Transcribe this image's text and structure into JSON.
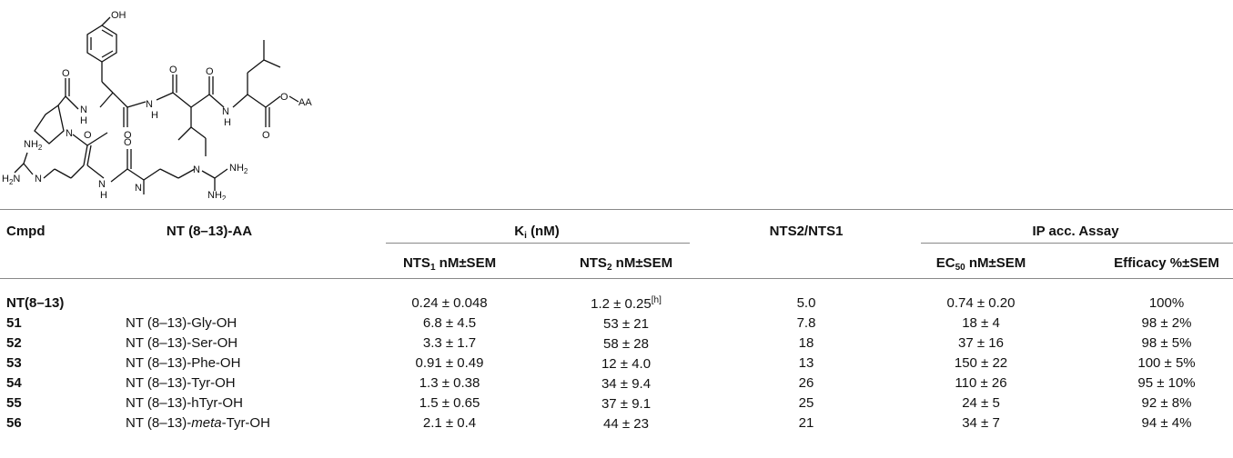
{
  "structure": {
    "labels": {
      "oh": "OH",
      "o": "O",
      "o_aa": "O",
      "aa": "AA",
      "n": "N",
      "nh": "N",
      "h": "H",
      "nh2": "NH",
      "two": "2",
      "h2n": "H",
      "h2n_tail": "N"
    }
  },
  "table": {
    "headers": {
      "cmpd": "Cmpd",
      "nt_aa": "NT (8–13)-AA",
      "ki": "K",
      "ki_sub": "i",
      "ki_unit": " (nM)",
      "ratio": "NTS2/NTS1",
      "ip": "IP acc. Assay",
      "nts1_pre": "NTS",
      "nts1_sub": "1",
      "nts1_post": " nM±SEM",
      "nts2_pre": "NTS",
      "nts2_sub": "2",
      "nts2_post": " nM±SEM",
      "ec50_pre": "EC",
      "ec50_sub": "50",
      "ec50_post": " nM±SEM",
      "efficacy": "Efficacy %±SEM"
    },
    "rows": [
      {
        "cmpd": "NT(8–13)",
        "name_pre": "",
        "name_it": "",
        "name_post": "",
        "nts1": "0.24 ± 0.048",
        "nts2": "1.2 ± 0.25",
        "nts2_note": "[h]",
        "ratio": "5.0",
        "ec50": "0.74 ± 0.20",
        "efficacy": "100%"
      },
      {
        "cmpd": "51",
        "name_pre": "NT (8–13)-Gly-OH",
        "name_it": "",
        "name_post": "",
        "nts1": "6.8 ± 4.5",
        "nts2": "53 ± 21",
        "nts2_note": "",
        "ratio": "7.8",
        "ec50": "18 ± 4",
        "efficacy": "98 ± 2%"
      },
      {
        "cmpd": "52",
        "name_pre": "NT (8–13)-Ser-OH",
        "name_it": "",
        "name_post": "",
        "nts1": "3.3 ± 1.7",
        "nts2": "58 ± 28",
        "nts2_note": "",
        "ratio": "18",
        "ec50": "37 ± 16",
        "efficacy": "98 ± 5%"
      },
      {
        "cmpd": "53",
        "name_pre": "NT (8–13)-Phe-OH",
        "name_it": "",
        "name_post": "",
        "nts1": "0.91 ± 0.49",
        "nts2": "12 ± 4.0",
        "nts2_note": "",
        "ratio": "13",
        "ec50": "150 ± 22",
        "efficacy": "100 ± 5%"
      },
      {
        "cmpd": "54",
        "name_pre": "NT (8–13)-Tyr-OH",
        "name_it": "",
        "name_post": "",
        "nts1": "1.3 ± 0.38",
        "nts2": "34 ± 9.4",
        "nts2_note": "",
        "ratio": "26",
        "ec50": "110 ± 26",
        "efficacy": "95 ± 10%"
      },
      {
        "cmpd": "55",
        "name_pre": "NT (8–13)-hTyr-OH",
        "name_it": "",
        "name_post": "",
        "nts1": "1.5 ± 0.65",
        "nts2": "37 ± 9.1",
        "nts2_note": "",
        "ratio": "25",
        "ec50": "24 ± 5",
        "efficacy": "92 ± 8%"
      },
      {
        "cmpd": "56",
        "name_pre": "NT (8–13)-",
        "name_it": "meta",
        "name_post": "-Tyr-OH",
        "nts1": "2.1 ± 0.4",
        "nts2": "44 ± 23",
        "nts2_note": "",
        "ratio": "21",
        "ec50": "34 ± 7",
        "efficacy": "94 ± 4%"
      }
    ]
  }
}
